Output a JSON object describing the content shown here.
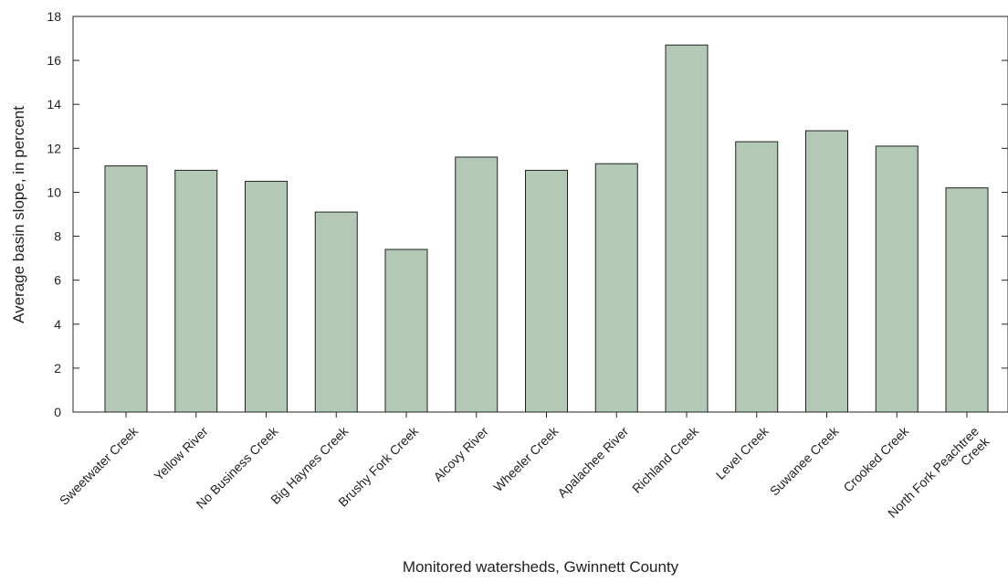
{
  "chart_data": {
    "type": "bar",
    "title": "",
    "xlabel": "Monitored watersheds, Gwinnett County",
    "ylabel": "Average basin slope, in percent",
    "ylim": [
      0,
      18
    ],
    "yticks": [
      0,
      2,
      4,
      6,
      8,
      10,
      12,
      14,
      16,
      18
    ],
    "grid": false,
    "legend": "none",
    "bar_color": "#b3c8b5",
    "categories": [
      "Sweetwater Creek",
      "Yellow River",
      "No Business Creek",
      "Big Haynes Creek",
      "Brushy Fork Creek",
      "Alcovy River",
      "Wheeler Creek",
      "Apalachee River",
      "Richland Creek",
      "Level Creek",
      "Suwanee Creek",
      "Crooked Creek",
      "North Fork Peachtree Creek"
    ],
    "values": [
      11.2,
      11.0,
      10.5,
      9.1,
      7.4,
      11.6,
      11.0,
      11.3,
      16.7,
      12.3,
      12.8,
      12.1,
      10.2
    ]
  }
}
